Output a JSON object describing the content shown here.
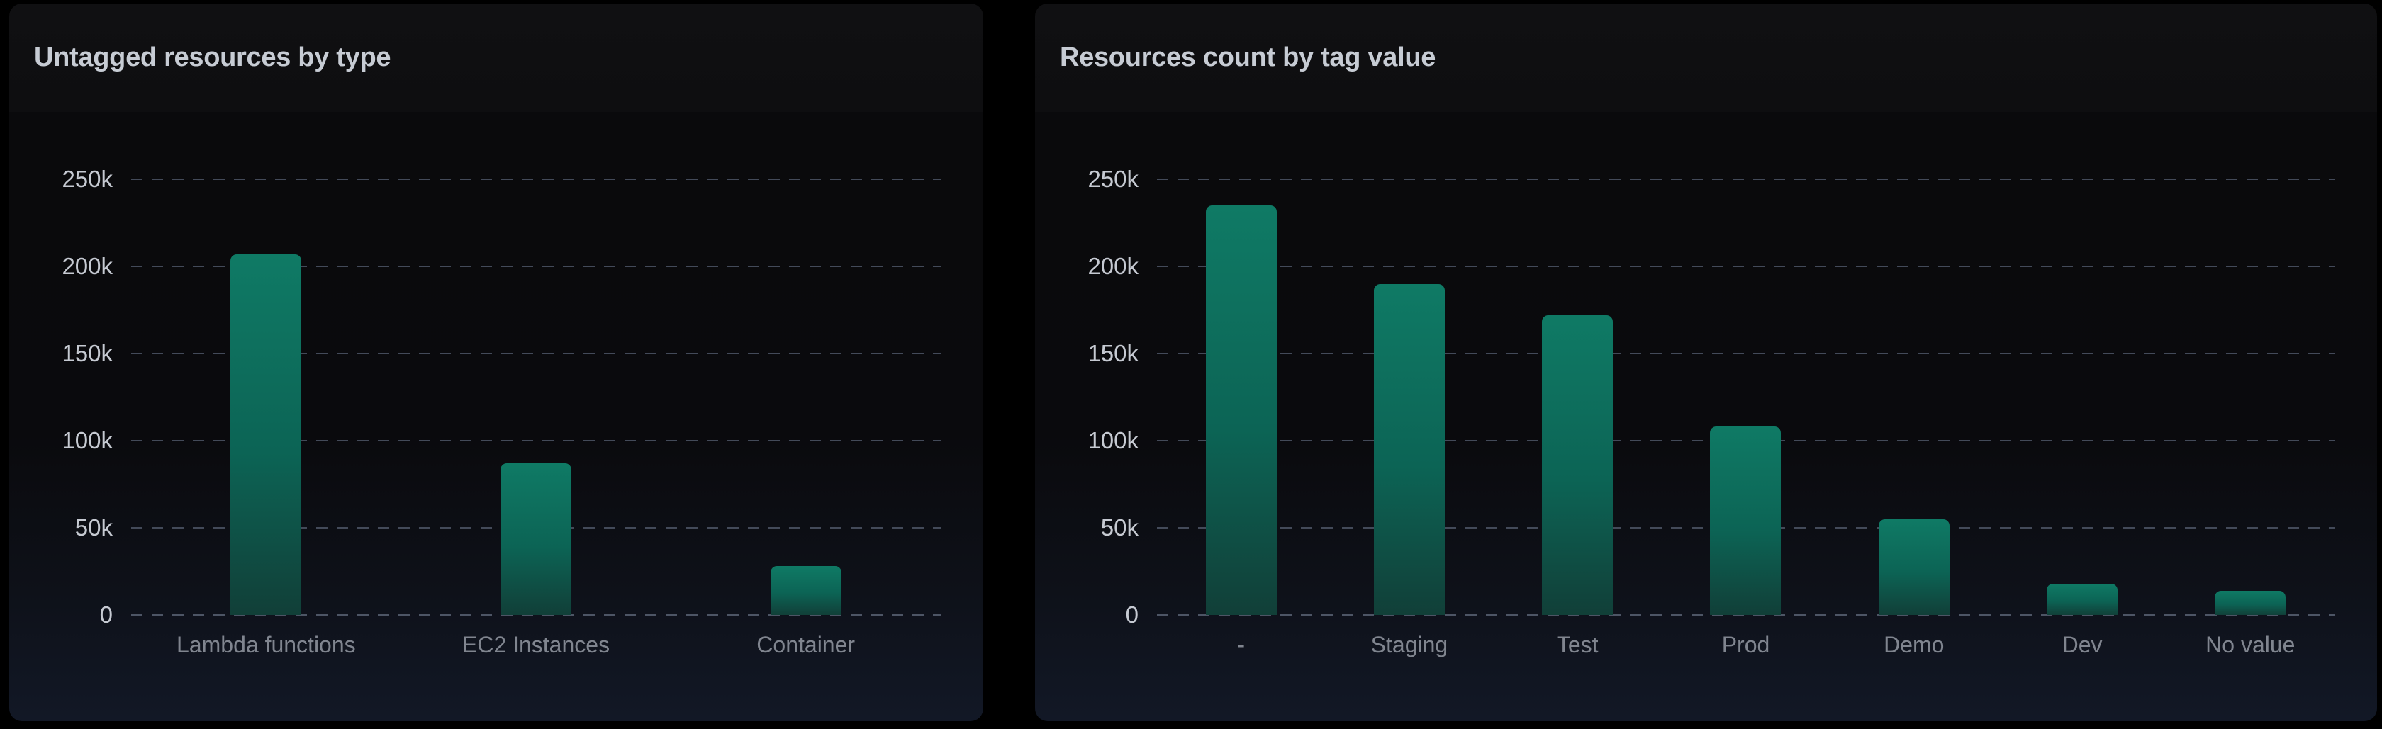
{
  "page": {
    "background_color": "#000000",
    "card_background_top": "#0a0a0c",
    "card_background_bottom": "#121826",
    "accent_bar_color_top": "#0f7a65",
    "accent_bar_color_bottom": "#113f38",
    "gridline_color": "#434a59",
    "title_color": "#c7ccd4",
    "y_tick_color": "#c6cad2",
    "x_tick_color": "#80858f"
  },
  "chart_data": [
    {
      "type": "bar",
      "title": "Untagged resources by type",
      "categories": [
        "Lambda functions",
        "EC2 Instances",
        "Container"
      ],
      "values": [
        207000,
        87000,
        28000
      ],
      "xlabel": "",
      "ylabel": "",
      "ylim": [
        0,
        250000
      ],
      "ytick_labels": [
        "0",
        "50k",
        "100k",
        "150k",
        "200k",
        "250k"
      ],
      "grid": "horizontal-dashed",
      "legend": "none"
    },
    {
      "type": "bar",
      "title": "Resources count by tag value",
      "categories": [
        "-",
        "Staging",
        "Test",
        "Prod",
        "Demo",
        "Dev",
        "No value"
      ],
      "values": [
        235000,
        190000,
        172000,
        108000,
        55000,
        18000,
        14000
      ],
      "xlabel": "",
      "ylabel": "",
      "ylim": [
        0,
        250000
      ],
      "ytick_labels": [
        "0",
        "50k",
        "100k",
        "150k",
        "200k",
        "250k"
      ],
      "grid": "horizontal-dashed",
      "legend": "none"
    }
  ]
}
